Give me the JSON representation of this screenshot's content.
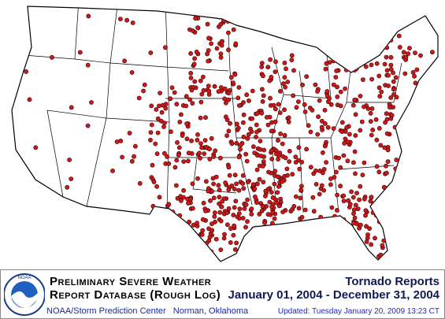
{
  "logo": {
    "text": "NOAA"
  },
  "header": {
    "title_line1": "Preliminary Severe Weather",
    "title_line2": "Report Database (Rough Log)",
    "credit": "NOAA/Storm Prediction Center   Norman, Oklahoma"
  },
  "report": {
    "title": "Tornado Reports",
    "period": "January 01, 2004 - December 31, 2004",
    "updated": "Updated: Tuesday January 20, 2009 13:23 CT"
  }
}
